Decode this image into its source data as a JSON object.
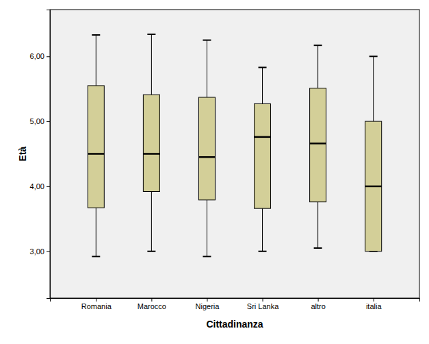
{
  "chart_data": {
    "type": "box",
    "x_label": "Cittadinanza",
    "y_label": "Età",
    "categories": [
      "Romania",
      "Marocco",
      "Nigeria",
      "Sri Lanka",
      "altro",
      "italia"
    ],
    "whisker_low": [
      2.92,
      3.0,
      2.92,
      3.0,
      3.05,
      3.0
    ],
    "q1": [
      3.67,
      3.92,
      3.79,
      3.66,
      3.76,
      3.0
    ],
    "median": [
      4.5,
      4.5,
      4.45,
      4.76,
      4.66,
      4.0
    ],
    "q3": [
      5.55,
      5.41,
      5.37,
      5.27,
      5.51,
      5.0
    ],
    "whisker_high": [
      6.33,
      6.34,
      6.25,
      5.83,
      6.17,
      6.0
    ],
    "color": "#d3cf98",
    "ylim": [
      2.28,
      6.72
    ],
    "yticks": [
      {
        "value": 3,
        "label": "3,00"
      },
      {
        "value": 4,
        "label": "4,00"
      },
      {
        "value": 5,
        "label": "5,00"
      },
      {
        "value": 6,
        "label": "6,00"
      }
    ],
    "grid": false
  }
}
